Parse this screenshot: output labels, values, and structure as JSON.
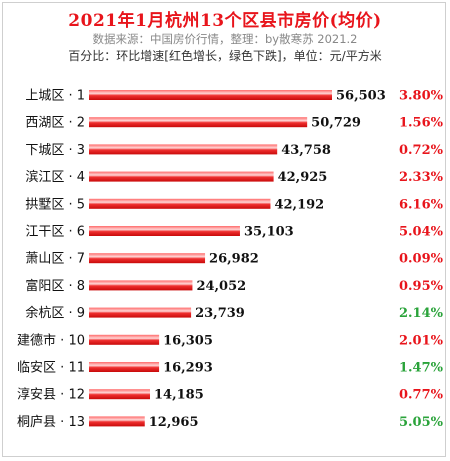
{
  "chart_data": {
    "type": "bar",
    "orientation": "horizontal",
    "title": "2021年1月杭州13个区县市房价(均价)",
    "source": "数据来源：中国房价行情，整理：by散寒苏  2021.2",
    "note": "百分比：环比增速[红色增长，绿色下跌]，单位：元/平方米",
    "categories": [
      "上城区 · 1",
      "西湖区 · 2",
      "下城区 · 3",
      "滨江区 · 4",
      "拱墅区 · 5",
      "江干区 · 6",
      "萧山区 · 7",
      "富阳区 · 8",
      "余杭区 · 9",
      "建德市 · 10",
      "临安区 · 11",
      "淳安县 · 12",
      "桐庐县 · 13"
    ],
    "values": [
      56503,
      50729,
      43758,
      42925,
      42192,
      35103,
      26982,
      24052,
      23739,
      16305,
      16293,
      14185,
      12965
    ],
    "value_labels": [
      "56,503",
      "50,729",
      "43,758",
      "42,925",
      "42,192",
      "35,103",
      "26,982",
      "24,052",
      "23,739",
      "16,305",
      "16,293",
      "14,185",
      "12,965"
    ],
    "growth_labels": [
      "3.80%",
      "1.56%",
      "0.72%",
      "2.33%",
      "6.16%",
      "5.04%",
      "0.09%",
      "0.95%",
      "2.14%",
      "2.01%",
      "1.47%",
      "0.77%",
      "5.05%"
    ],
    "growth_direction": [
      "up",
      "up",
      "up",
      "up",
      "up",
      "up",
      "up",
      "up",
      "down",
      "up",
      "down",
      "up",
      "down"
    ],
    "colors": {
      "bar": "#e8141b",
      "up": "#e8141b",
      "down": "#2aa33a",
      "title": "#e8141b"
    },
    "grid": false,
    "legend": "none"
  }
}
